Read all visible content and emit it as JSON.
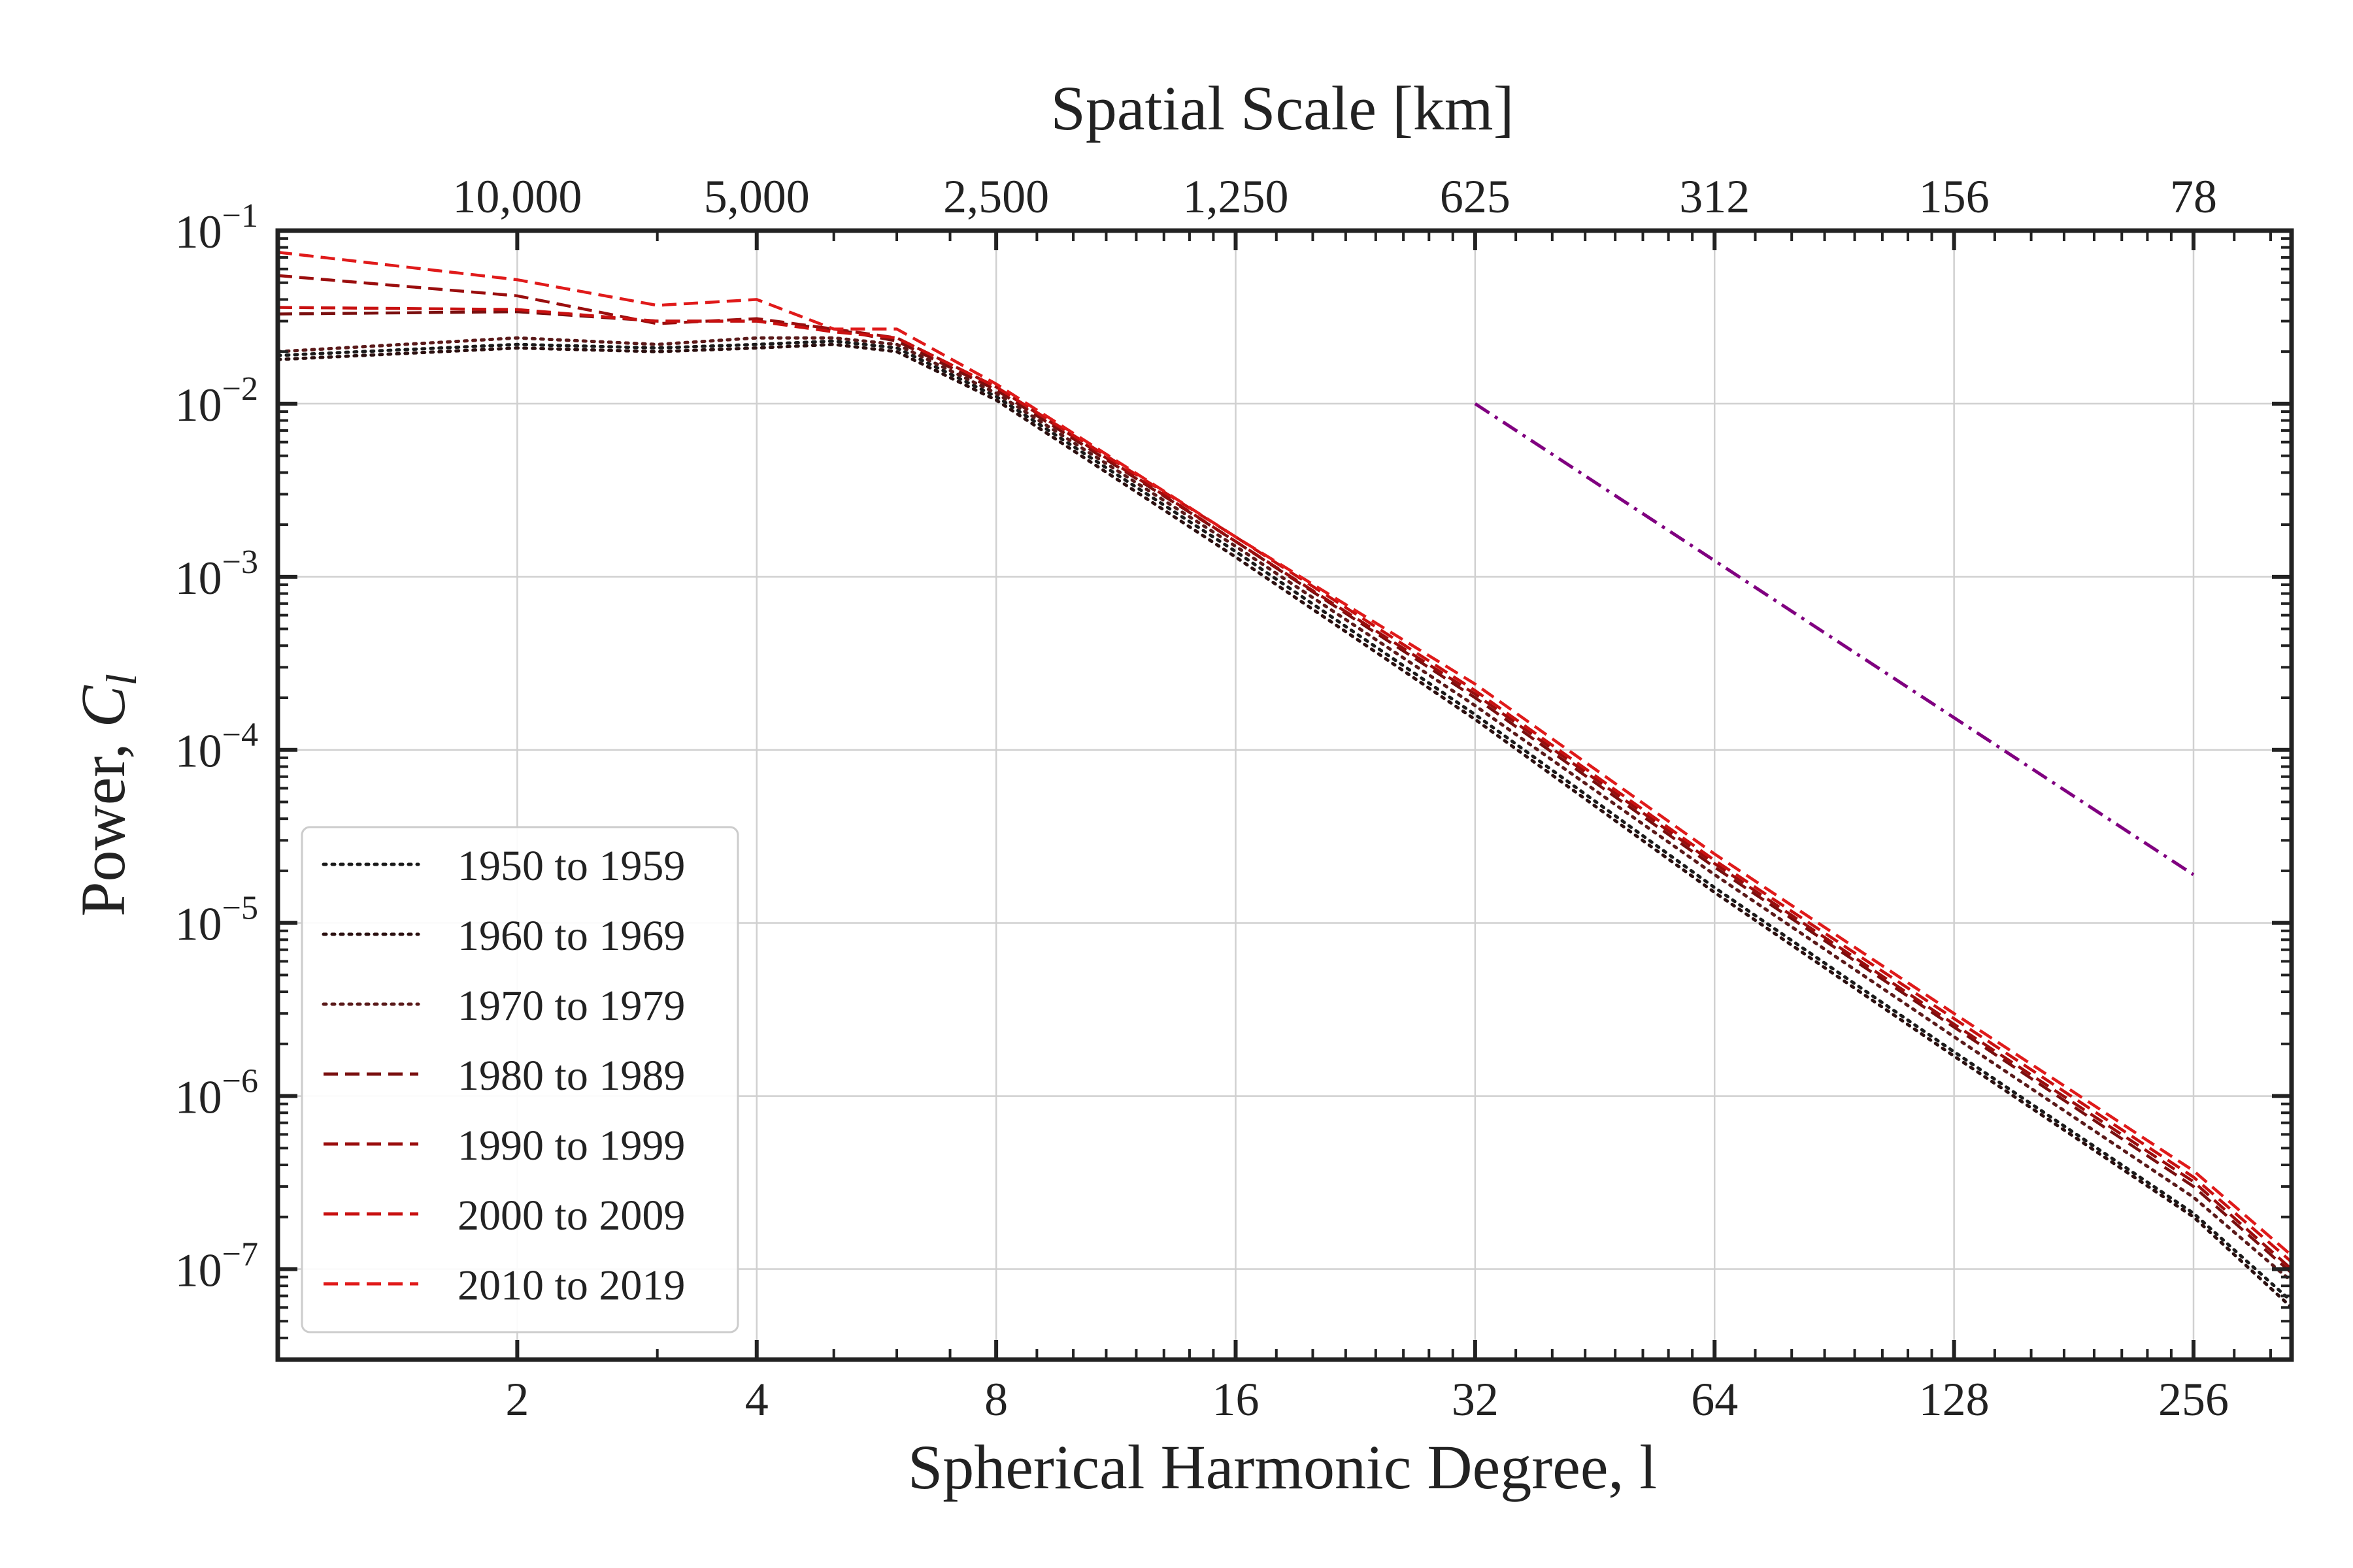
{
  "chart_data": {
    "type": "line",
    "xlabel": "Spherical Harmonic Degree, l",
    "ylabel_main": "Power, ",
    "ylabel_var": "C",
    "ylabel_sub": "l",
    "top_xlabel": "Spatial Scale [km]",
    "xscale": "log2",
    "yscale": "log10",
    "xlim": [
      1,
      340
    ],
    "ylim": [
      3e-08,
      0.1
    ],
    "grid": true,
    "legend_location": "lower-left",
    "x_ticks": [
      {
        "value": 2,
        "label": "2"
      },
      {
        "value": 4,
        "label": "4"
      },
      {
        "value": 8,
        "label": "8"
      },
      {
        "value": 16,
        "label": "16"
      },
      {
        "value": 32,
        "label": "32"
      },
      {
        "value": 64,
        "label": "64"
      },
      {
        "value": 128,
        "label": "128"
      },
      {
        "value": 256,
        "label": "256"
      }
    ],
    "top_ticks": [
      {
        "value": 2,
        "label": "10,000"
      },
      {
        "value": 4,
        "label": "5,000"
      },
      {
        "value": 8,
        "label": "2,500"
      },
      {
        "value": 16,
        "label": "1,250"
      },
      {
        "value": 32,
        "label": "625"
      },
      {
        "value": 64,
        "label": "312"
      },
      {
        "value": 128,
        "label": "156"
      },
      {
        "value": 256,
        "label": "78"
      }
    ],
    "y_ticks": [
      {
        "value": 0.1,
        "base": "10",
        "exp": "−1"
      },
      {
        "value": 0.01,
        "base": "10",
        "exp": "−2"
      },
      {
        "value": 0.001,
        "base": "10",
        "exp": "−3"
      },
      {
        "value": 0.0001,
        "base": "10",
        "exp": "−4"
      },
      {
        "value": 1e-05,
        "base": "10",
        "exp": "−5"
      },
      {
        "value": 1e-06,
        "base": "10",
        "exp": "−6"
      },
      {
        "value": 1e-07,
        "base": "10",
        "exp": "−7"
      }
    ],
    "reference_line": {
      "x": [
        32,
        256
      ],
      "y": [
        0.01,
        1.9e-05
      ],
      "color": "#800080",
      "style": "dashdot"
    },
    "series": [
      {
        "name": "1950 to 1959",
        "color": "#1a1a1a",
        "style": "dotted",
        "x": [
          1,
          2,
          3,
          4,
          5,
          6,
          8,
          16,
          32,
          64,
          128,
          256,
          340
        ],
        "y": [
          0.019,
          0.022,
          0.021,
          0.022,
          0.023,
          0.021,
          0.011,
          0.0014,
          0.00016,
          1.6e-05,
          1.8e-06,
          2.1e-07,
          6.5e-08
        ]
      },
      {
        "name": "1960 to 1969",
        "color": "#2b1010",
        "style": "dotted",
        "x": [
          1,
          2,
          3,
          4,
          5,
          6,
          8,
          16,
          32,
          64,
          128,
          256,
          340
        ],
        "y": [
          0.018,
          0.021,
          0.02,
          0.021,
          0.022,
          0.02,
          0.0105,
          0.0013,
          0.00015,
          1.5e-05,
          1.7e-06,
          2e-07,
          6e-08
        ]
      },
      {
        "name": "1970 to 1979",
        "color": "#5a1a1a",
        "style": "dotted",
        "x": [
          1,
          2,
          3,
          4,
          5,
          6,
          8,
          16,
          32,
          64,
          128,
          256,
          340
        ],
        "y": [
          0.02,
          0.024,
          0.022,
          0.024,
          0.024,
          0.022,
          0.0115,
          0.0015,
          0.00018,
          1.9e-05,
          2.2e-06,
          2.6e-07,
          8.5e-08
        ]
      },
      {
        "name": "1980 to 1989",
        "color": "#7a0f0f",
        "style": "dashed",
        "x": [
          1,
          2,
          3,
          4,
          5,
          6,
          8,
          16,
          32,
          64,
          128,
          256,
          340
        ],
        "y": [
          0.033,
          0.034,
          0.03,
          0.03,
          0.027,
          0.023,
          0.012,
          0.0016,
          0.0002,
          2.1e-05,
          2.5e-06,
          3e-07,
          9.5e-08
        ]
      },
      {
        "name": "1990 to 1999",
        "color": "#9a0d0d",
        "style": "dashed",
        "x": [
          1,
          2,
          3,
          4,
          5,
          6,
          8,
          16,
          32,
          64,
          128,
          256,
          340
        ],
        "y": [
          0.055,
          0.042,
          0.029,
          0.031,
          0.027,
          0.024,
          0.0125,
          0.0016,
          0.00021,
          2.2e-05,
          2.6e-06,
          3.2e-07,
          1e-07
        ]
      },
      {
        "name": "2000 to 2009",
        "color": "#c81010",
        "style": "dashed",
        "x": [
          1,
          2,
          3,
          4,
          5,
          6,
          8,
          16,
          32,
          64,
          128,
          256,
          340
        ],
        "y": [
          0.036,
          0.035,
          0.03,
          0.03,
          0.026,
          0.024,
          0.0125,
          0.0017,
          0.00022,
          2.3e-05,
          2.8e-06,
          3.4e-07,
          1.1e-07
        ]
      },
      {
        "name": "2010 to 2019",
        "color": "#e01a1a",
        "style": "dashed",
        "x": [
          1,
          2,
          3,
          4,
          5,
          6,
          8,
          16,
          32,
          64,
          128,
          256,
          340
        ],
        "y": [
          0.075,
          0.052,
          0.037,
          0.04,
          0.027,
          0.027,
          0.013,
          0.0017,
          0.00024,
          2.5e-05,
          3e-06,
          3.7e-07,
          1.2e-07
        ]
      }
    ]
  }
}
